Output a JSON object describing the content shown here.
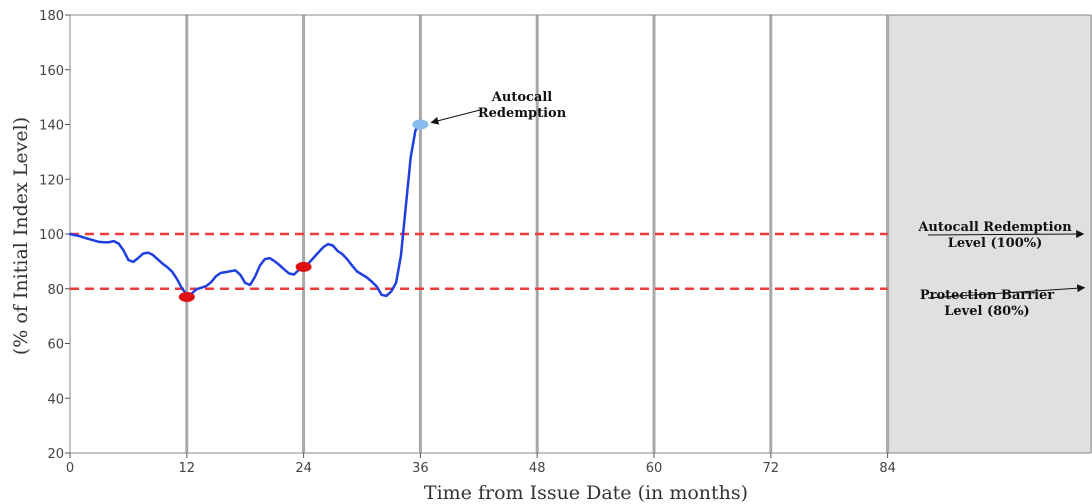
{
  "chart_data": {
    "type": "line",
    "title": "",
    "xlabel": "Time from Issue Date (in months)",
    "ylabel": "(% of Initial Index Level)",
    "xlim": [
      0,
      105
    ],
    "ylim": [
      20,
      180
    ],
    "x_ticks": [
      0,
      12,
      24,
      36,
      48,
      60,
      72,
      84
    ],
    "y_ticks": [
      20,
      40,
      60,
      80,
      100,
      120,
      140,
      160,
      180
    ],
    "vertical_gridlines_at": [
      12,
      24,
      36,
      48,
      60,
      72,
      84
    ],
    "shaded_region": {
      "x_start": 84,
      "x_end": 105,
      "color": "#e0e0e0"
    },
    "series": [
      {
        "color": "#1f3fe0",
        "x": [
          0,
          0.5,
          1,
          1.5,
          2,
          2.5,
          3,
          3.5,
          4,
          4.5,
          5,
          5.5,
          6,
          6.5,
          7,
          7.5,
          8,
          8.5,
          9,
          9.5,
          10,
          10.5,
          11,
          11.5,
          12,
          12.5,
          13,
          13.5,
          14,
          14.5,
          15,
          15.5,
          16,
          16.5,
          17,
          17.5,
          18,
          18.5,
          19,
          19.5,
          20,
          20.5,
          21,
          21.5,
          22,
          22.5,
          23,
          23.5,
          24,
          24.5,
          25,
          25.5,
          26,
          26.5,
          27,
          27.5,
          28,
          28.5,
          29,
          29.5,
          30,
          30.5,
          31,
          31.5,
          32,
          32.5,
          33,
          33.5,
          34,
          34.5,
          35,
          35.5,
          36
        ],
        "y": [
          100,
          99.6,
          99.2,
          98.6,
          98.1,
          97.6,
          97.1,
          97.0,
          97.0,
          97.4,
          96.5,
          94.0,
          90.5,
          89.8,
          91.2,
          92.8,
          93.2,
          92.4,
          90.8,
          89.2,
          87.9,
          86.2,
          83.5,
          80.2,
          77.8,
          78.3,
          79.8,
          80.4,
          81.0,
          82.4,
          84.6,
          85.8,
          86.1,
          86.4,
          86.7,
          85.1,
          82.1,
          81.4,
          84.3,
          88.4,
          90.8,
          91.2,
          90.1,
          88.7,
          87.1,
          85.6,
          85.2,
          86.8,
          88.2,
          89.3,
          91.2,
          93.2,
          95.1,
          96.3,
          95.8,
          93.8,
          92.6,
          90.7,
          88.4,
          86.3,
          85.2,
          84.1,
          82.6,
          80.9,
          77.8,
          77.4,
          79.0,
          82.2,
          92.0,
          110.0,
          128.0,
          138.0,
          140.0
        ]
      }
    ],
    "reference_lines": [
      {
        "y": 100,
        "color": "#ee3b3b",
        "style": "dashed"
      },
      {
        "y": 80,
        "color": "#ee3b3b",
        "style": "dashed"
      }
    ],
    "markers": [
      {
        "x": 12,
        "y": 77,
        "color": "#dd1111"
      },
      {
        "x": 24,
        "y": 88,
        "color": "#dd1111"
      },
      {
        "x": 36,
        "y": 140,
        "color": "#88bbee"
      }
    ],
    "annotations": [
      {
        "lines": [
          "Autocall",
          "Redemption"
        ],
        "arrow_to": {
          "x": 36,
          "y": 140
        }
      },
      {
        "lines": [
          "Autocall Redemption",
          "Level (100%)"
        ],
        "arrow_to": {
          "x": 104.2,
          "y": 100
        }
      },
      {
        "lines": [
          "Protection Barrier",
          "Level (80%)"
        ],
        "arrow_to": {
          "x": 104.2,
          "y": 80
        }
      }
    ]
  }
}
